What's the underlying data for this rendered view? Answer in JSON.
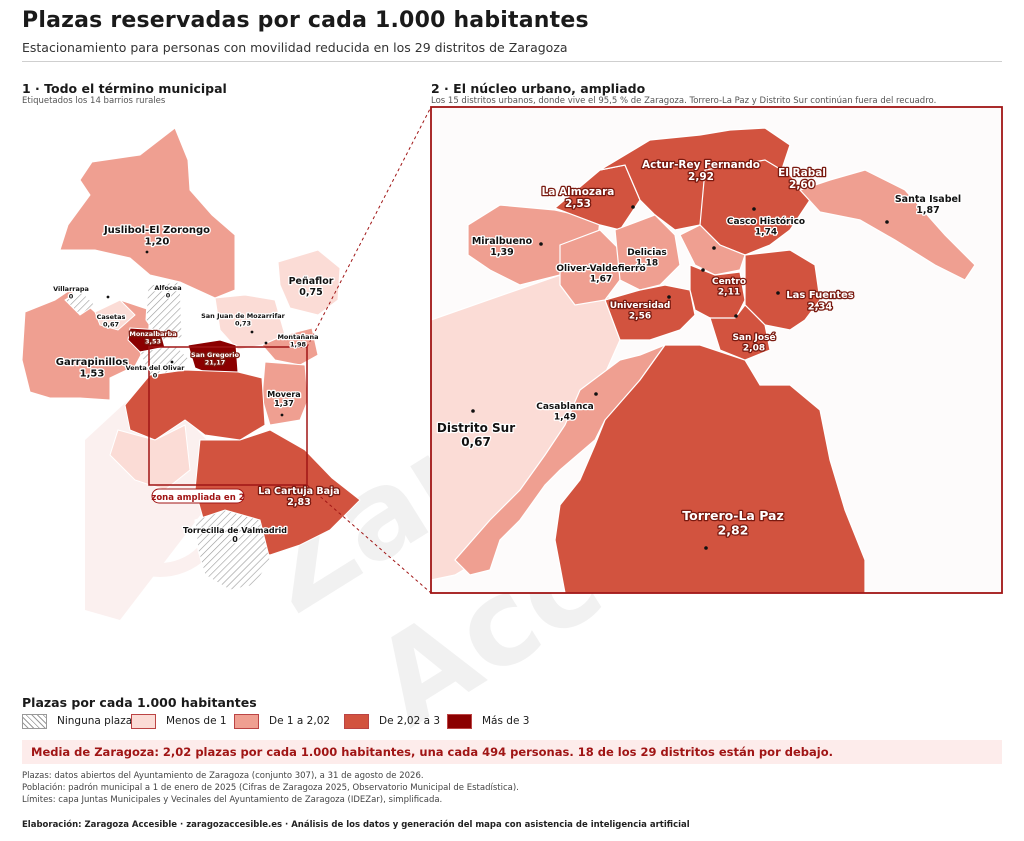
{
  "header": {
    "title": "Plazas reservadas por cada 1.000 habitantes",
    "subtitle": "Estacionamiento para personas con movilidad reducida en los 29 distritos de Zaragoza"
  },
  "panel1": {
    "title": "1 · Todo el término municipal",
    "subtitle": "Etiquetados los 14 barrios rurales",
    "zoom_label": "zona ampliada en 2",
    "labels": [
      {
        "name": "Juslibol-El Zorongo",
        "value": "1,20"
      },
      {
        "name": "Alfocea",
        "value": "0"
      },
      {
        "name": "Villarrapa",
        "value": "0"
      },
      {
        "name": "Casetas",
        "value": "0,67"
      },
      {
        "name": "Peñaflor",
        "value": "0,75"
      },
      {
        "name": "San Juan de Mozarrifar",
        "value": "0,73"
      },
      {
        "name": "Montañana",
        "value": "1,98"
      },
      {
        "name": "Monzalbarba",
        "value": "3,53"
      },
      {
        "name": "San Gregorio",
        "value": "21,17"
      },
      {
        "name": "Garrapinillos",
        "value": "1,53"
      },
      {
        "name": "Venta del Olivar",
        "value": "0"
      },
      {
        "name": "Movera",
        "value": "1,37"
      },
      {
        "name": "La Cartuja Baja",
        "value": "2,83"
      },
      {
        "name": "Torrecilla de Valmadrid",
        "value": "0"
      }
    ]
  },
  "panel2": {
    "title": "2 · El núcleo urbano, ampliado",
    "subtitle": "Los 15 distritos urbanos, donde vive el 95,5 % de Zaragoza. Torrero-La Paz y Distrito Sur continúan fuera del recuadro.",
    "labels": [
      {
        "name": "Actur-Rey Fernando",
        "value": "2,92"
      },
      {
        "name": "El Rabal",
        "value": "2,60"
      },
      {
        "name": "La Almozara",
        "value": "2,53"
      },
      {
        "name": "Casco Histórico",
        "value": "1,74"
      },
      {
        "name": "Santa Isabel",
        "value": "1,87"
      },
      {
        "name": "Miralbueno",
        "value": "1,39"
      },
      {
        "name": "Delicias",
        "value": "1,18"
      },
      {
        "name": "Oliver-Valdefierro",
        "value": "1,67"
      },
      {
        "name": "Centro",
        "value": "2,11"
      },
      {
        "name": "Las Fuentes",
        "value": "2,34"
      },
      {
        "name": "Universidad",
        "value": "2,56"
      },
      {
        "name": "San José",
        "value": "2,08"
      },
      {
        "name": "Casablanca",
        "value": "1,49"
      },
      {
        "name": "Distrito Sur",
        "value": "0,67"
      },
      {
        "name": "Torrero-La Paz",
        "value": "2,82"
      }
    ]
  },
  "watermark": "Zaragoza Accesible",
  "legend": {
    "title": "Plazas por cada 1.000 habitantes",
    "items": [
      {
        "label": "Ninguna plaza",
        "color": "hatch"
      },
      {
        "label": "Menos de 1",
        "color": "#fbdcd6"
      },
      {
        "label": "De 1 a 2,02",
        "color": "#ef9f91"
      },
      {
        "label": "De 2,02 a 3",
        "color": "#d2533f"
      },
      {
        "label": "Más de 3",
        "color": "#8b0000"
      }
    ]
  },
  "average_note": "Media de Zaragoza: 2,02 plazas por cada 1.000 habitantes, una cada 494 personas. 18 de los 29 distritos están por debajo.",
  "sources": [
    "Plazas: datos abiertos del Ayuntamiento de Zaragoza (conjunto 307), a 31 de agosto de 2026.",
    "Población: padrón municipal a 1 de enero de 2025 (Cifras de Zaragoza 2025, Observatorio Municipal de Estadística).",
    "Límites: capa Juntas Municipales y Vecinales del Ayuntamiento de Zaragoza (IDEZar), simplificada."
  ],
  "credit": "Elaboración: Zaragoza Accesible · zaragozaccesible.es · Análisis de los datos y generación del mapa con asistencia de inteligencia artificial",
  "colors": {
    "none": "#ffffff",
    "lt1": "#fbdcd6",
    "b1_2": "#ef9f91",
    "b2_3": "#d2533f",
    "gt3": "#8b0000",
    "accent": "#a01515"
  }
}
